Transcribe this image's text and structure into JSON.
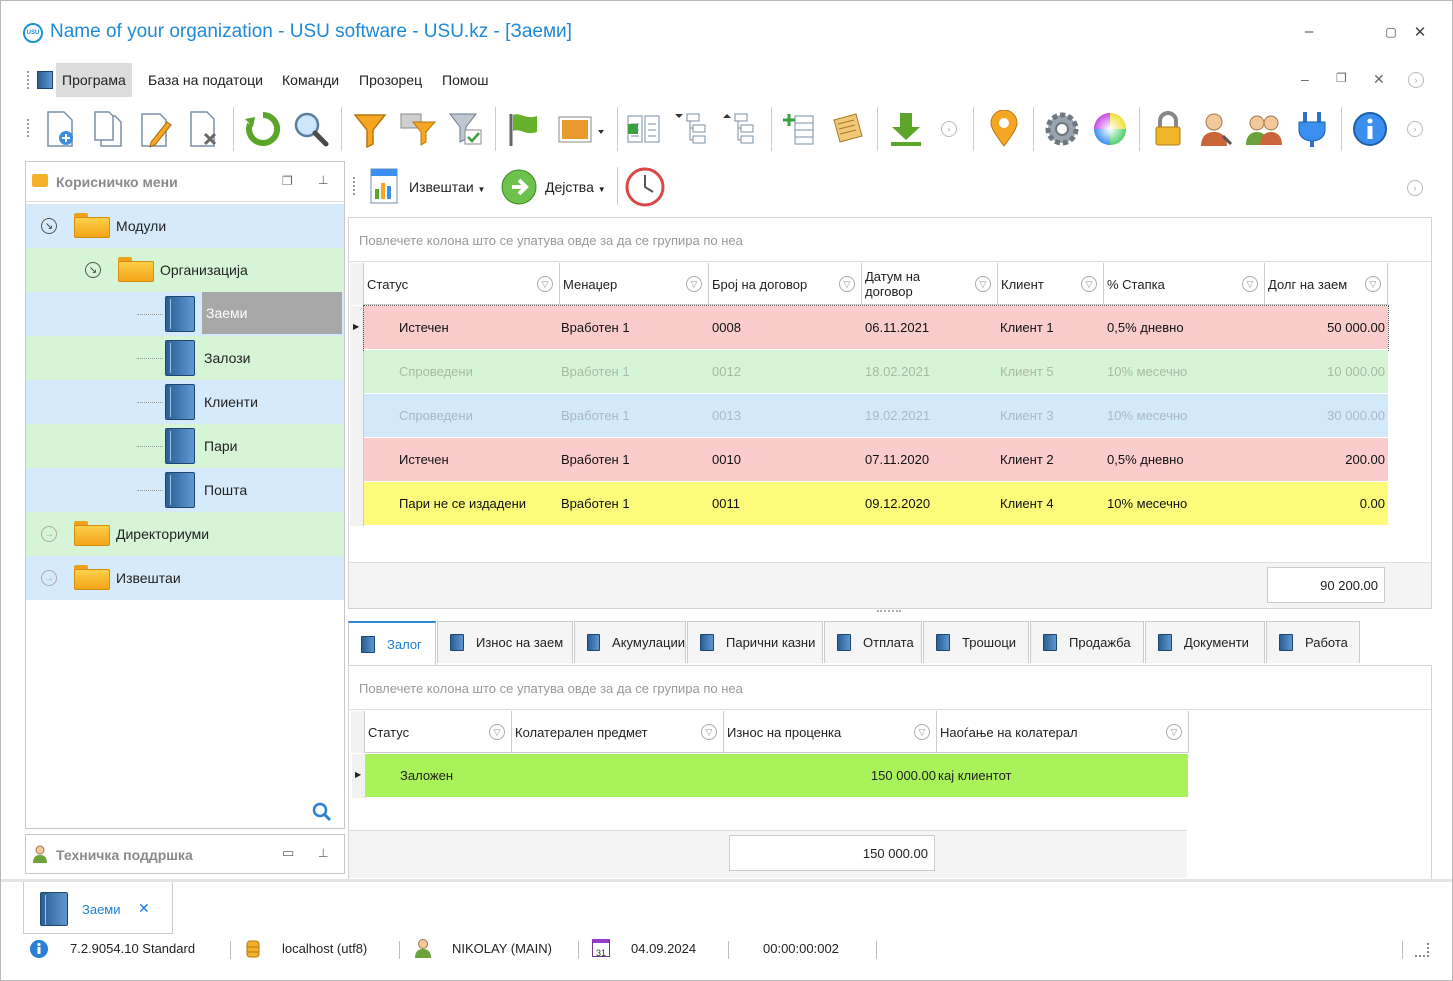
{
  "window": {
    "title": "Name of your organization - USU software - USU.kz - [Заеми]",
    "logo_text": "USU"
  },
  "menu": {
    "items": [
      "Програма",
      "База на податоци",
      "Команди",
      "Прозорец",
      "Помош"
    ]
  },
  "left_panel": {
    "title": "Корисничко мени",
    "tree": {
      "modules": "Модули",
      "organization": "Организација",
      "loans": "Заеми",
      "pledges": "Залози",
      "clients": "Клиенти",
      "money": "Пари",
      "mail": "Пошта",
      "directories": "Директориуми",
      "reports": "Извештаи"
    }
  },
  "tech_panel": {
    "title": "Техничка поддршка"
  },
  "sub_toolbar": {
    "reports_label": "Извештаи",
    "actions_label": "Дејства"
  },
  "main_grid": {
    "group_hint": "Повлечете колона што се упатува овде за да се групира по неа",
    "columns": [
      "Статус",
      "Менаџер",
      "Број на договор",
      "Датум на договор",
      "Клиент",
      "% Стапка",
      "Долг на заем"
    ],
    "rows": [
      {
        "status": "Истечен",
        "manager": "Вработен 1",
        "contract": "0008",
        "date": "06.11.2021",
        "client": "Клиент 1",
        "rate": "0,5% дневно",
        "debt": "50 000.00"
      },
      {
        "status": "Спроведени",
        "manager": "Вработен 1",
        "contract": "0012",
        "date": "18.02.2021",
        "client": "Клиент 5",
        "rate": "10% месечно",
        "debt": "10 000.00"
      },
      {
        "status": "Спроведени",
        "manager": "Вработен 1",
        "contract": "0013",
        "date": "19.02.2021",
        "client": "Клиент 3",
        "rate": "10% месечно",
        "debt": "30 000.00"
      },
      {
        "status": "Истечен",
        "manager": "Вработен 1",
        "contract": "0010",
        "date": "07.11.2020",
        "client": "Клиент 2",
        "rate": "0,5% дневно",
        "debt": "200.00"
      },
      {
        "status": "Пари не се издадени",
        "manager": "Вработен 1",
        "contract": "0011",
        "date": "09.12.2020",
        "client": "Клиент 4",
        "rate": "10% месечно",
        "debt": "0.00"
      }
    ],
    "row_colors": [
      "#fbcccc",
      "#d6f5d6",
      "#d2e9fa",
      "#fbcccc",
      "#fdfb7a"
    ],
    "row_text_colors": [
      "#111111",
      "#aab8aa",
      "#a9b8c6",
      "#111111",
      "#111111"
    ],
    "total": "90 200.00"
  },
  "detail_tabs": [
    "Залог",
    "Износ на заем",
    "Акумулации",
    "Парични казни",
    "Отплата",
    "Трошоци",
    "Продажба",
    "Документи",
    "Работа"
  ],
  "detail_grid": {
    "group_hint": "Повлечете колона што се упатува овде за да се групира по неа",
    "columns": [
      "Статус",
      "Колатерален предмет",
      "Износ на проценка",
      "Наоѓање на колатерал"
    ],
    "rows": [
      {
        "status": "Заложен",
        "item": "",
        "amount": "150 000.00",
        "location": "кај клиентот"
      }
    ],
    "row_color": "#a9f25a",
    "total": "150 000.00"
  },
  "doc_tab": {
    "label": "Заеми",
    "close": "✕"
  },
  "status_bar": {
    "version": "7.2.9054.10 Standard",
    "db": "localhost (utf8)",
    "user": "NIKOLAY (MAIN)",
    "calendar_day": "31",
    "date": "04.09.2024",
    "timer": "00:00:00:002"
  }
}
